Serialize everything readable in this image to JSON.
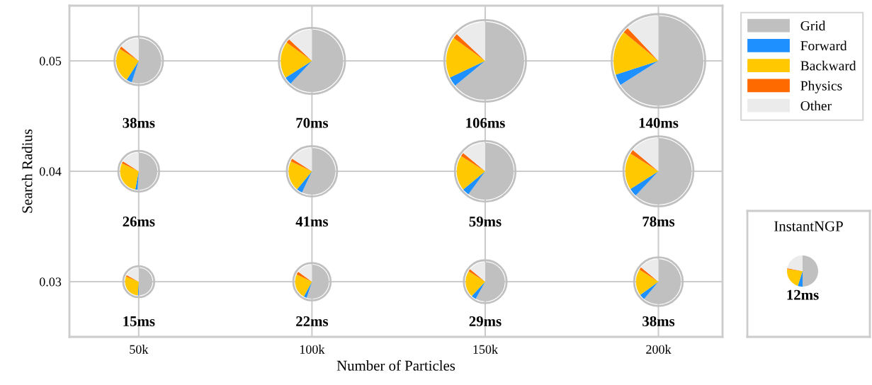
{
  "chart_data": [
    {
      "type": "bubble",
      "xlabel": "Number of Particles",
      "ylabel": "Search Radius",
      "categories": [
        "50k",
        "100k",
        "150k",
        "200k"
      ],
      "ylim": [
        0.025,
        0.055
      ],
      "yticks": [
        0.03,
        0.04,
        0.05
      ],
      "grid": true,
      "series": [
        {
          "color": "#c0c0c0",
          "values": [
            0.05,
            0.05,
            0.05,
            0.05
          ],
          "sizes": [
            0.27,
            0.5,
            0.76,
            1
          ]
        },
        {
          "color": "#c0c0c0",
          "values": [
            0.04,
            0.04,
            0.04,
            0.04
          ],
          "sizes": [
            0.19,
            0.29,
            0.42,
            0.56
          ]
        },
        {
          "color": "#c0c0c0",
          "values": [
            0.03,
            0.03,
            0.03,
            0.03
          ],
          "sizes": [
            0.11,
            0.16,
            0.21,
            0.27
          ]
        }
      ],
      "annotations": [
        "38ms",
        "70ms",
        "106ms",
        "140ms",
        "26ms",
        "41ms",
        "59ms",
        "78ms",
        "15ms",
        "22ms",
        "29ms",
        "38ms"
      ]
    },
    {
      "type": "pie",
      "legend": "right",
      "categories": [
        "Grid",
        "Forward",
        "Backward",
        "Physics",
        "Other"
      ],
      "colors": [
        "#c0c0c0",
        "#1e90ff",
        "#ffc800",
        "#ff6a00",
        "#ebebeb"
      ],
      "values": [
        55,
        4,
        25,
        2,
        14
      ]
    },
    {
      "type": "pie",
      "categories": [
        null,
        null,
        null,
        null,
        null
      ],
      "colors": [
        "#c0c0c0",
        "#1e90ff",
        "#ffc800",
        "#ff6a00",
        "#ebebeb"
      ],
      "values": [
        62,
        4,
        19,
        2,
        13
      ]
    },
    {
      "type": "pie",
      "categories": [
        null,
        null,
        null,
        null,
        null
      ],
      "colors": [
        "#c0c0c0",
        "#1e90ff",
        "#ffc800",
        "#ff6a00",
        "#ebebeb"
      ],
      "values": [
        64,
        4,
        17,
        2,
        13
      ]
    },
    {
      "type": "pie",
      "categories": [
        null,
        null,
        null,
        null,
        null
      ],
      "colors": [
        "#c0c0c0",
        "#1e90ff",
        "#ffc800",
        "#ff6a00",
        "#ebebeb"
      ],
      "values": [
        66,
        4,
        16,
        2,
        12
      ]
    },
    {
      "type": "pie",
      "categories": [
        null,
        null,
        null,
        null,
        null
      ],
      "colors": [
        "#c0c0c0",
        "#1e90ff",
        "#ffc800",
        "#ff6a00",
        "#ebebeb"
      ],
      "values": [
        51,
        2,
        29,
        2,
        16
      ]
    },
    {
      "type": "pie",
      "categories": [
        null,
        null,
        null,
        null,
        null
      ],
      "colors": [
        "#c0c0c0",
        "#1e90ff",
        "#ffc800",
        "#ff6a00",
        "#ebebeb"
      ],
      "values": [
        57,
        4,
        21,
        2,
        16
      ]
    },
    {
      "type": "pie",
      "categories": [
        null,
        null,
        null,
        null,
        null
      ],
      "colors": [
        "#c0c0c0",
        "#1e90ff",
        "#ffc800",
        "#ff6a00",
        "#ebebeb"
      ],
      "values": [
        60,
        4,
        20,
        2,
        14
      ]
    },
    {
      "type": "pie",
      "categories": [
        null,
        null,
        null,
        null,
        null
      ],
      "colors": [
        "#c0c0c0",
        "#1e90ff",
        "#ffc800",
        "#ff6a00",
        "#ebebeb"
      ],
      "values": [
        62,
        4,
        18,
        2,
        14
      ]
    },
    {
      "type": "pie",
      "categories": [
        null,
        null,
        null,
        null,
        null
      ],
      "colors": [
        "#c0c0c0",
        "#1e90ff",
        "#ffc800",
        "#ff6a00",
        "#ebebeb"
      ],
      "values": [
        50,
        1,
        30,
        2,
        17
      ]
    },
    {
      "type": "pie",
      "categories": [
        null,
        null,
        null,
        null,
        null
      ],
      "colors": [
        "#c0c0c0",
        "#1e90ff",
        "#ffc800",
        "#ff6a00",
        "#ebebeb"
      ],
      "values": [
        55,
        3,
        24,
        3,
        15
      ]
    },
    {
      "type": "pie",
      "categories": [
        null,
        null,
        null,
        null,
        null
      ],
      "colors": [
        "#c0c0c0",
        "#1e90ff",
        "#ffc800",
        "#ff6a00",
        "#ebebeb"
      ],
      "values": [
        58,
        4,
        22,
        2,
        14
      ]
    },
    {
      "type": "pie",
      "categories": [
        null,
        null,
        null,
        null,
        null
      ],
      "colors": [
        "#c0c0c0",
        "#1e90ff",
        "#ffc800",
        "#ff6a00",
        "#ebebeb"
      ],
      "values": [
        61,
        4,
        19,
        2,
        14
      ]
    },
    {
      "type": "pie",
      "title": "InstantNGP",
      "annotations": [
        "12ms"
      ],
      "categories": [
        null,
        null,
        null,
        null,
        null
      ],
      "colors": [
        "#c0c0c0",
        "#1e90ff",
        "#ffc800",
        "#ff6a00",
        "#ebebeb"
      ],
      "values": [
        50,
        5,
        22,
        1,
        22
      ]
    }
  ]
}
